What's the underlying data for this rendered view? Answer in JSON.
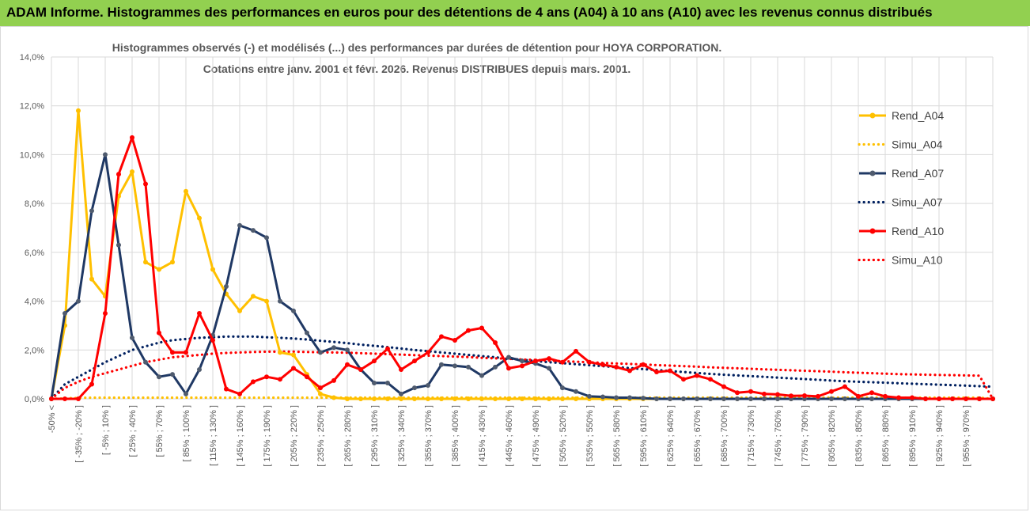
{
  "header": {
    "title": "ADAM Informe. Histogrammes des performances en euros pour des détentions de 4 ans (A04) à 10 ans (A10) avec les revenus connus distribués"
  },
  "colors": {
    "banner": "#92d050",
    "A04": "#ffc000",
    "A07": "#002060",
    "A10": "#ff0000",
    "grid": "#d9d9d9"
  },
  "chart_data": {
    "type": "line",
    "title": [
      "Histogrammes observés (-) et modélisés (...) des performances par durées de détention pour HOYA CORPORATION.",
      "Cotations entre janv. 2001 et févr. 2026. Revenus DISTRIBUES depuis mars. 2001."
    ],
    "ylim": [
      0,
      14
    ],
    "y_ticks": [
      "0,0%",
      "2,0%",
      "4,0%",
      "6,0%",
      "8,0%",
      "10,0%",
      "12,0%",
      "14,0%"
    ],
    "grid": true,
    "legend_position": "right",
    "x_tick_labels": [
      "-50% <",
      "[ -35% ; -20% ]",
      "[ -5% ; 10% ]",
      "[ 25% ; 40% ]",
      "[ 55% ; 70% ]",
      "[ 85% ; 100% ]",
      "[ 115% ; 130% ]",
      "[ 145% ; 160% ]",
      "[ 175% ; 190% ]",
      "[ 205% ; 220% ]",
      "[ 235% ; 250% ]",
      "[ 265% ; 280% ]",
      "[ 295% ; 310% ]",
      "[ 325% ; 340% ]",
      "[ 355% ; 370% ]",
      "[ 385% ; 400% ]",
      "[ 415% ; 430% ]",
      "[ 445% ; 460% ]",
      "[ 475% ; 490% ]",
      "[ 505% ; 520% ]",
      "[ 535% ; 550% ]",
      "[ 565% ; 580% ]",
      "[ 595% ; 610% ]",
      "[ 625% ; 640% ]",
      "[ 655% ; 670% ]",
      "[ 685% ; 700% ]",
      "[ 715% ; 730% ]",
      "[ 745% ; 760% ]",
      "[ 775% ; 790% ]",
      "[ 805% ; 820% ]",
      "[ 835% ; 850% ]",
      "[ 865% ; 880% ]",
      "[ 895% ; 910% ]",
      "[ 925% ; 940% ]",
      "[ 955% ; 970% ]"
    ],
    "series": [
      {
        "name": "Rend_A04",
        "style": "solid",
        "color": "#ffc000",
        "values": [
          0,
          3.0,
          11.8,
          4.9,
          4.2,
          8.3,
          9.3,
          5.6,
          5.3,
          5.6,
          8.5,
          7.4,
          5.3,
          4.3,
          3.6,
          4.2,
          4.0,
          1.9,
          1.8,
          1.0,
          0.2,
          0.05,
          0,
          0,
          0,
          0,
          0,
          0,
          0,
          0,
          0,
          0,
          0,
          0,
          0,
          0,
          0,
          0,
          0,
          0,
          0,
          0,
          0,
          0,
          0,
          0,
          0,
          0,
          0,
          0,
          0,
          0,
          0,
          0,
          0,
          0,
          0,
          0,
          0,
          0,
          0,
          0,
          0,
          0,
          0,
          0,
          0,
          0,
          0,
          0,
          0
        ]
      },
      {
        "name": "Simu_A04",
        "style": "dotted",
        "color": "#ffc000",
        "values": [
          0,
          0.02,
          0.04,
          0.05,
          0.05,
          0.05,
          0.05,
          0.05,
          0.05,
          0.05,
          0.05,
          0.05,
          0.05,
          0.05,
          0.05,
          0.05,
          0.05,
          0.05,
          0.05,
          0.05,
          0.05,
          0.05,
          0.05,
          0.05,
          0.05,
          0.05,
          0.05,
          0.05,
          0.05,
          0.05,
          0.05,
          0.05,
          0.05,
          0.05,
          0.05,
          0.05,
          0.05,
          0.05,
          0.05,
          0.05,
          0.05,
          0.05,
          0.05,
          0.05,
          0.05,
          0.05,
          0.05,
          0.05,
          0.05,
          0.05,
          0.05,
          0.05,
          0.05,
          0.05,
          0.05,
          0.05,
          0.05,
          0.05,
          0.05,
          0.05,
          0.05,
          0.05,
          0.05,
          0.05,
          0.05,
          0.05,
          0.05,
          0.05,
          0.05,
          0.05,
          0
        ]
      },
      {
        "name": "Rend_A07",
        "style": "solid",
        "color": "#1f3864",
        "values": [
          0,
          3.5,
          4.0,
          7.7,
          10.0,
          6.3,
          2.5,
          1.5,
          0.9,
          1.0,
          0.2,
          1.2,
          2.6,
          4.6,
          7.1,
          6.9,
          6.6,
          4.0,
          3.6,
          2.7,
          1.9,
          2.1,
          2.0,
          1.2,
          0.65,
          0.65,
          0.2,
          0.45,
          0.55,
          1.4,
          1.35,
          1.3,
          0.95,
          1.3,
          1.7,
          1.55,
          1.45,
          1.25,
          0.45,
          0.3,
          0.1,
          0.08,
          0.05,
          0.05,
          0.03,
          0,
          0,
          0,
          0,
          0,
          0,
          0,
          0,
          0,
          0,
          0,
          0,
          0,
          0,
          0,
          0,
          0,
          0,
          0,
          0,
          0,
          0,
          0,
          0,
          0,
          0
        ]
      },
      {
        "name": "Simu_A07",
        "style": "dotted",
        "color": "#002060",
        "values": [
          0,
          0.6,
          0.9,
          1.2,
          1.5,
          1.75,
          2.0,
          2.15,
          2.3,
          2.4,
          2.45,
          2.5,
          2.52,
          2.55,
          2.55,
          2.55,
          2.52,
          2.5,
          2.47,
          2.43,
          2.38,
          2.33,
          2.28,
          2.22,
          2.17,
          2.12,
          2.06,
          2.0,
          1.95,
          1.9,
          1.85,
          1.8,
          1.75,
          1.7,
          1.65,
          1.6,
          1.55,
          1.5,
          1.46,
          1.42,
          1.38,
          1.34,
          1.3,
          1.26,
          1.22,
          1.18,
          1.14,
          1.1,
          1.06,
          1.02,
          0.99,
          0.96,
          0.93,
          0.9,
          0.87,
          0.84,
          0.81,
          0.78,
          0.75,
          0.72,
          0.7,
          0.68,
          0.66,
          0.64,
          0.62,
          0.6,
          0.58,
          0.56,
          0.54,
          0.52,
          0.5
        ]
      },
      {
        "name": "Rend_A10",
        "style": "solid",
        "color": "#ff0000",
        "values": [
          0,
          0,
          0,
          0.6,
          3.5,
          9.2,
          10.7,
          8.8,
          2.7,
          1.9,
          1.9,
          3.5,
          2.4,
          0.4,
          0.2,
          0.7,
          0.9,
          0.8,
          1.25,
          0.9,
          0.45,
          0.75,
          1.4,
          1.2,
          1.55,
          2.05,
          1.2,
          1.55,
          1.9,
          2.55,
          2.4,
          2.8,
          2.9,
          2.3,
          1.25,
          1.35,
          1.55,
          1.65,
          1.5,
          1.95,
          1.5,
          1.4,
          1.3,
          1.15,
          1.4,
          1.1,
          1.15,
          0.8,
          0.95,
          0.8,
          0.5,
          0.25,
          0.3,
          0.2,
          0.18,
          0.12,
          0.13,
          0.1,
          0.3,
          0.5,
          0.1,
          0.25,
          0.1,
          0.05,
          0.05,
          0,
          0,
          0,
          0,
          0,
          0
        ]
      },
      {
        "name": "Simu_A10",
        "style": "dotted",
        "color": "#ff0000",
        "values": [
          0,
          0.45,
          0.7,
          0.9,
          1.05,
          1.2,
          1.35,
          1.5,
          1.6,
          1.7,
          1.75,
          1.8,
          1.85,
          1.88,
          1.9,
          1.92,
          1.93,
          1.93,
          1.93,
          1.92,
          1.91,
          1.9,
          1.89,
          1.87,
          1.85,
          1.83,
          1.81,
          1.79,
          1.77,
          1.75,
          1.73,
          1.71,
          1.68,
          1.66,
          1.64,
          1.61,
          1.59,
          1.57,
          1.54,
          1.52,
          1.5,
          1.47,
          1.45,
          1.43,
          1.41,
          1.38,
          1.36,
          1.34,
          1.32,
          1.29,
          1.27,
          1.25,
          1.23,
          1.21,
          1.19,
          1.17,
          1.15,
          1.13,
          1.11,
          1.09,
          1.07,
          1.05,
          1.03,
          1.01,
          1.0,
          0.99,
          0.98,
          0.97,
          0.96,
          0.95,
          0
        ]
      }
    ]
  }
}
